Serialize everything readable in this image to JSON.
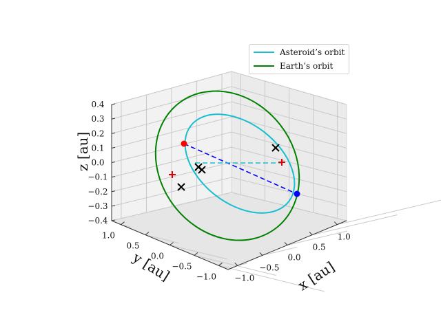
{
  "chart_data": {
    "type": "line",
    "projection": "3d",
    "xlabel": "$x$ [au]",
    "ylabel": "$y$ [au]",
    "zlabel": "$z$ [au]",
    "xlim": [
      -1.2,
      1.2
    ],
    "ylim": [
      -1.2,
      1.2
    ],
    "zlim": [
      -0.4,
      0.4
    ],
    "x_ticks": [
      "−1.0",
      "−0.5",
      "0.0",
      "0.5",
      "1.0"
    ],
    "y_ticks": [
      "1.0",
      "0.5",
      "0.0",
      "−0.5",
      "−1.0"
    ],
    "z_ticks": [
      "0.4",
      "0.3",
      "0.2",
      "0.1",
      "0.0",
      "−0.1",
      "−0.2",
      "−0.3",
      "−0.4"
    ],
    "grid": true,
    "legend_position": "top-right",
    "series": [
      {
        "name": "Asteroid’s orbit",
        "color": "#17becf",
        "shape": "ellipse",
        "semi_major": 0.8,
        "semi_minor": 0.7,
        "center": [
          0.0,
          0.0,
          0.0
        ],
        "inclination_deg": 11
      },
      {
        "name": "Earth’s orbit",
        "color": "#008000",
        "shape": "ellipse",
        "semi_major": 1.15,
        "semi_minor": 1.0,
        "center": [
          0.0,
          0.0,
          0.0
        ],
        "inclination_deg": 22
      }
    ],
    "markers": [
      {
        "type": "dot",
        "color": "#ff0000",
        "x": -0.45,
        "y": 0.55,
        "z": 0.25
      },
      {
        "type": "dot",
        "color": "#0000ff",
        "x": 0.55,
        "y": -0.65,
        "z": -0.2
      },
      {
        "type": "plus",
        "color": "#e00000",
        "x": -0.7,
        "y": 0.7,
        "z": -0.05
      },
      {
        "type": "plus",
        "color": "#e00000",
        "x": 0.5,
        "y": -0.1,
        "z": 0.05
      },
      {
        "type": "cross",
        "color": "#000000",
        "x": -0.6,
        "y": 0.45,
        "z": -0.15
      },
      {
        "type": "cross",
        "color": "#000000",
        "x": -0.25,
        "y": 0.3,
        "z": -0.02
      },
      {
        "type": "cross",
        "color": "#000000",
        "x": -0.22,
        "y": 0.22,
        "z": -0.03
      },
      {
        "type": "cross",
        "color": "#000000",
        "x": 0.35,
        "y": 0.05,
        "z": 0.18
      }
    ],
    "connectors": [
      {
        "from": "red-dot",
        "to": "blue-dot",
        "color": "#0000ff",
        "style": "dashed"
      },
      {
        "from": "cross-center",
        "to": "plus-right",
        "color": "#17becf",
        "style": "dashed"
      }
    ]
  },
  "axes": {
    "x_label_text": "x [au]",
    "y_label_text": "y [au]",
    "z_label_text": "z [au]"
  },
  "legend": {
    "items": [
      {
        "label": "Asteroid’s orbit",
        "color": "#17becf"
      },
      {
        "label": "Earth’s orbit",
        "color": "#008000"
      }
    ]
  }
}
